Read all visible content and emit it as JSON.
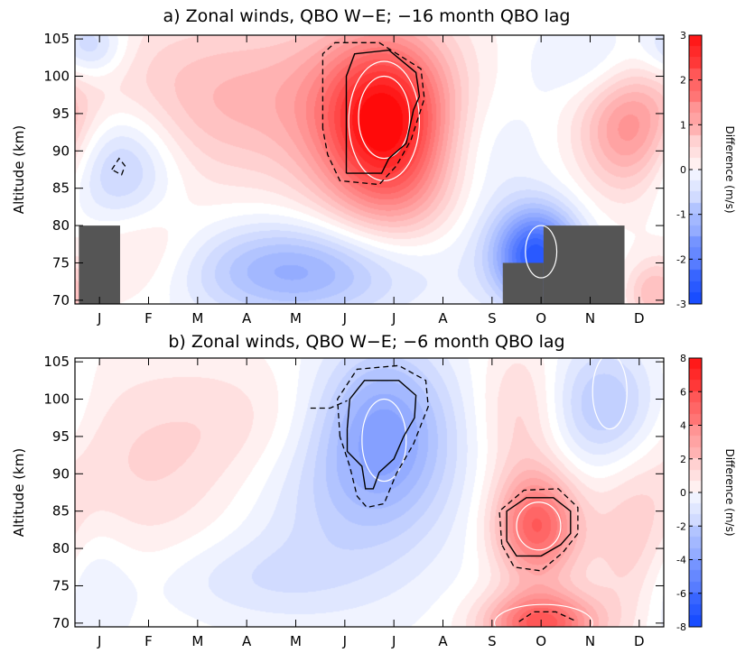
{
  "chart_data": [
    {
      "type": "heatmap",
      "title": "a) Zonal winds, QBO W−E; −16 month QBO lag",
      "ylabel": "Altitude (km)",
      "months": [
        "J",
        "F",
        "M",
        "A",
        "M",
        "J",
        "J",
        "A",
        "S",
        "O",
        "N",
        "D"
      ],
      "yticks": [
        70,
        75,
        80,
        85,
        90,
        95,
        100,
        105
      ],
      "ylim": [
        69.5,
        105.5
      ],
      "colorbar": {
        "label": "Difference (m/s)",
        "ticks": [
          -3,
          -2,
          -1,
          0,
          1,
          2,
          3
        ],
        "range": [
          -3,
          3
        ]
      },
      "blobs": [
        {
          "month": 6.35,
          "alt": 94,
          "sm": 0.95,
          "sa": 8,
          "amp": 2.7
        },
        {
          "month": 3.6,
          "alt": 97,
          "sm": 2.6,
          "sa": 8,
          "amp": 0.9
        },
        {
          "month": 7.3,
          "alt": 84,
          "sm": 1.3,
          "sa": 6,
          "amp": 0.8
        },
        {
          "month": 11.3,
          "alt": 93,
          "sm": 0.7,
          "sa": 6,
          "amp": 1.2
        },
        {
          "month": 1.3,
          "alt": 77,
          "sm": 0.9,
          "sa": 5,
          "amp": 0.5
        },
        {
          "month": 9.4,
          "alt": 76,
          "sm": 0.6,
          "sa": 4.5,
          "amp": -2.6
        },
        {
          "month": 4.5,
          "alt": 74,
          "sm": 1.6,
          "sa": 4.5,
          "amp": -1.3
        },
        {
          "month": 0.9,
          "alt": 88,
          "sm": 0.8,
          "sa": 6,
          "amp": -1.0
        },
        {
          "month": 8.0,
          "alt": 86,
          "sm": 1.0,
          "sa": 8,
          "amp": -0.9
        },
        {
          "month": 10.6,
          "alt": 102,
          "sm": 0.8,
          "sa": 4,
          "amp": -0.5
        },
        {
          "month": 0.3,
          "alt": 104,
          "sm": 0.5,
          "sa": 3,
          "amp": -0.8
        },
        {
          "month": 11.8,
          "alt": 71,
          "sm": 0.4,
          "sa": 3,
          "amp": 0.8
        }
      ],
      "masked_regions": [
        {
          "m0": 0.08,
          "m1": 0.92,
          "a0": 69.5,
          "a1": 80
        },
        {
          "m0": 8.72,
          "m1": 9.55,
          "a0": 69.5,
          "a1": 75
        },
        {
          "m0": 9.55,
          "m1": 11.2,
          "a0": 69.5,
          "a1": 80
        }
      ],
      "contours_white": [
        {
          "month": 6.3,
          "alt": 94.5,
          "rm": 0.52,
          "ra": 5.5
        },
        {
          "month": 6.3,
          "alt": 94,
          "rm": 0.72,
          "ra": 8.0
        },
        {
          "month": 9.5,
          "alt": 76.5,
          "rm": 0.32,
          "ra": 3.5
        }
      ],
      "contours_solid": [
        [
          [
            5.53,
            87
          ],
          [
            5.53,
            100
          ],
          [
            5.7,
            103
          ],
          [
            6.4,
            103.5
          ],
          [
            6.95,
            100.5
          ],
          [
            7.02,
            97.3
          ],
          [
            6.9,
            95.5
          ],
          [
            6.75,
            91
          ],
          [
            6.4,
            89
          ],
          [
            6.25,
            87
          ],
          [
            5.53,
            87
          ]
        ]
      ],
      "contours_dashed": [
        [
          [
            5.05,
            93
          ],
          [
            5.05,
            103
          ],
          [
            5.3,
            104.5
          ],
          [
            6.2,
            104.5
          ],
          [
            7.05,
            101
          ],
          [
            7.12,
            97
          ],
          [
            6.85,
            91.5
          ],
          [
            6.55,
            88
          ],
          [
            6.2,
            85.5
          ],
          [
            5.4,
            86
          ],
          [
            5.15,
            89.5
          ],
          [
            5.05,
            93
          ]
        ],
        [
          [
            0.75,
            87.5
          ],
          [
            0.9,
            89
          ],
          [
            1.02,
            88
          ],
          [
            0.95,
            86.8
          ],
          [
            0.75,
            87.5
          ]
        ]
      ]
    },
    {
      "type": "heatmap",
      "title": "b) Zonal winds, QBO W−E; −6 month QBO lag",
      "ylabel": "Altitude (km)",
      "months": [
        "J",
        "F",
        "M",
        "A",
        "M",
        "J",
        "J",
        "A",
        "S",
        "O",
        "N",
        "D"
      ],
      "yticks": [
        70,
        75,
        80,
        85,
        90,
        95,
        100,
        105
      ],
      "ylim": [
        69.5,
        105.5
      ],
      "colorbar": {
        "label": "Difference (m/s)",
        "ticks": [
          -8,
          -6,
          -4,
          -2,
          0,
          2,
          4,
          6,
          8
        ],
        "range": [
          -8,
          8
        ]
      },
      "blobs": [
        {
          "month": 6.3,
          "alt": 96,
          "sm": 0.95,
          "sa": 8,
          "amp": -3.4
        },
        {
          "month": 5.4,
          "alt": 87,
          "sm": 1.6,
          "sa": 10,
          "amp": -1.6
        },
        {
          "month": 3.8,
          "alt": 97,
          "sm": 1.3,
          "sa": 6,
          "amp": 0.8
        },
        {
          "month": 10.8,
          "alt": 99,
          "sm": 0.8,
          "sa": 6,
          "amp": -2.6
        },
        {
          "month": 9.4,
          "alt": 83,
          "sm": 0.6,
          "sa": 5,
          "amp": 5.2
        },
        {
          "month": 9.5,
          "alt": 70,
          "sm": 0.8,
          "sa": 3,
          "amp": 5.5
        },
        {
          "month": 1.5,
          "alt": 91,
          "sm": 1.8,
          "sa": 10,
          "amp": 1.3
        },
        {
          "month": 0.2,
          "alt": 75,
          "sm": 0.6,
          "sa": 7,
          "amp": -1.2
        },
        {
          "month": 11.4,
          "alt": 80,
          "sm": 0.6,
          "sa": 8,
          "amp": 1.5
        },
        {
          "month": 3.5,
          "alt": 76,
          "sm": 1.5,
          "sa": 4,
          "amp": -1.0
        },
        {
          "month": 9.1,
          "alt": 98,
          "sm": 0.6,
          "sa": 7,
          "amp": 1.5
        }
      ],
      "masked_regions": [],
      "contours_white": [
        {
          "month": 6.3,
          "alt": 94.5,
          "rm": 0.45,
          "ra": 5.5
        },
        {
          "month": 9.45,
          "alt": 83,
          "rm": 0.45,
          "ra": 3.2
        },
        {
          "month": 9.55,
          "alt": 70,
          "rm": 1.0,
          "ra": 2.5
        },
        {
          "month": 10.9,
          "alt": 101,
          "rm": 0.35,
          "ra": 5.0
        }
      ],
      "contours_solid": [
        [
          [
            5.55,
            96
          ],
          [
            5.6,
            100
          ],
          [
            5.9,
            102.5
          ],
          [
            6.6,
            102.5
          ],
          [
            6.95,
            100.5
          ],
          [
            6.92,
            97.5
          ],
          [
            6.7,
            95
          ],
          [
            6.5,
            92
          ],
          [
            6.2,
            90.2
          ],
          [
            6.08,
            88
          ],
          [
            5.92,
            88
          ],
          [
            5.85,
            91
          ],
          [
            5.55,
            93
          ],
          [
            5.55,
            96
          ]
        ],
        [
          [
            8.8,
            81
          ],
          [
            8.8,
            85
          ],
          [
            9.2,
            86.8
          ],
          [
            9.75,
            86.8
          ],
          [
            10.1,
            85
          ],
          [
            10.1,
            82
          ],
          [
            9.9,
            80.5
          ],
          [
            9.5,
            79
          ],
          [
            9.0,
            79
          ],
          [
            8.8,
            81
          ]
        ]
      ],
      "contours_dashed": [
        [
          [
            5.4,
            95
          ],
          [
            5.35,
            100
          ],
          [
            5.75,
            104
          ],
          [
            6.6,
            104.5
          ],
          [
            7.15,
            102.5
          ],
          [
            7.2,
            99
          ],
          [
            6.9,
            94
          ],
          [
            6.55,
            90
          ],
          [
            6.3,
            86
          ],
          [
            5.95,
            85.5
          ],
          [
            5.75,
            87
          ],
          [
            5.6,
            91
          ],
          [
            5.4,
            95
          ]
        ],
        [
          [
            4.8,
            98.8
          ],
          [
            5.2,
            98.8
          ],
          [
            5.55,
            99.8
          ]
        ],
        [
          [
            8.7,
            80.5
          ],
          [
            8.65,
            85
          ],
          [
            9.15,
            87.8
          ],
          [
            9.85,
            88
          ],
          [
            10.25,
            85.5
          ],
          [
            10.25,
            82
          ],
          [
            9.95,
            79.5
          ],
          [
            9.5,
            77
          ],
          [
            8.95,
            77.5
          ],
          [
            8.7,
            80.5
          ]
        ],
        [
          [
            9.05,
            70.2
          ],
          [
            9.35,
            71.5
          ],
          [
            9.8,
            71.5
          ],
          [
            10.2,
            70.3
          ]
        ]
      ]
    }
  ]
}
